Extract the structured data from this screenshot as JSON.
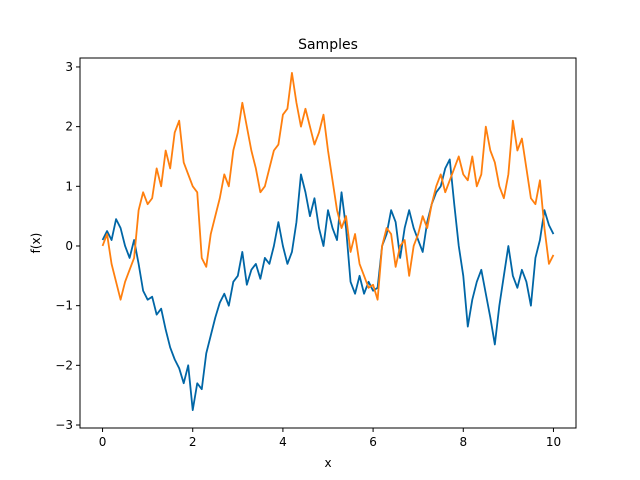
{
  "chart_data": {
    "type": "line",
    "title": "Samples",
    "xlabel": "x",
    "ylabel": "f(x)",
    "xlim": [
      -0.5,
      10.5
    ],
    "ylim": [
      -3.05,
      3.15
    ],
    "xticks": [
      0,
      2,
      4,
      6,
      8,
      10
    ],
    "yticks": [
      -3,
      -2,
      -1,
      0,
      1,
      2,
      3
    ],
    "xtick_labels": [
      "0",
      "2",
      "4",
      "6",
      "8",
      "10"
    ],
    "ytick_labels": [
      "−3",
      "−2",
      "−1",
      "0",
      "1",
      "2",
      "3"
    ],
    "grid": false,
    "legend": "none",
    "series": [
      {
        "color": "#0066a6",
        "x": [
          0,
          0.1,
          0.2,
          0.3,
          0.4,
          0.5,
          0.6,
          0.7,
          0.8,
          0.9,
          1.0,
          1.1,
          1.2,
          1.3,
          1.4,
          1.5,
          1.6,
          1.7,
          1.8,
          1.9,
          2.0,
          2.1,
          2.2,
          2.3,
          2.4,
          2.5,
          2.6,
          2.7,
          2.8,
          2.9,
          3.0,
          3.1,
          3.2,
          3.3,
          3.4,
          3.5,
          3.6,
          3.7,
          3.8,
          3.9,
          4.0,
          4.1,
          4.2,
          4.3,
          4.4,
          4.5,
          4.6,
          4.7,
          4.8,
          4.9,
          5.0,
          5.1,
          5.2,
          5.3,
          5.4,
          5.5,
          5.6,
          5.7,
          5.8,
          5.9,
          6.0,
          6.1,
          6.2,
          6.3,
          6.4,
          6.5,
          6.6,
          6.7,
          6.8,
          6.9,
          7.0,
          7.1,
          7.2,
          7.3,
          7.4,
          7.5,
          7.6,
          7.7,
          7.8,
          7.9,
          8.0,
          8.1,
          8.2,
          8.3,
          8.4,
          8.5,
          8.6,
          8.7,
          8.8,
          8.9,
          9.0,
          9.1,
          9.2,
          9.3,
          9.4,
          9.5,
          9.6,
          9.7,
          9.8,
          9.9,
          10.0
        ],
        "y": [
          0.1,
          0.25,
          0.1,
          0.45,
          0.3,
          0.0,
          -0.2,
          0.1,
          -0.3,
          -0.75,
          -0.9,
          -0.85,
          -1.15,
          -1.05,
          -1.4,
          -1.7,
          -1.9,
          -2.05,
          -2.3,
          -2.0,
          -2.75,
          -2.3,
          -2.4,
          -1.8,
          -1.5,
          -1.2,
          -0.95,
          -0.8,
          -1.0,
          -0.6,
          -0.5,
          -0.1,
          -0.65,
          -0.4,
          -0.3,
          -0.55,
          -0.2,
          -0.3,
          0.0,
          0.4,
          0.0,
          -0.3,
          -0.1,
          0.4,
          1.2,
          0.9,
          0.5,
          0.8,
          0.3,
          0.0,
          0.6,
          0.3,
          0.1,
          0.9,
          0.3,
          -0.6,
          -0.8,
          -0.5,
          -0.8,
          -0.6,
          -0.75,
          -0.7,
          0.0,
          0.2,
          0.6,
          0.4,
          -0.2,
          0.3,
          0.6,
          0.3,
          0.1,
          -0.1,
          0.4,
          0.7,
          0.9,
          1.0,
          1.3,
          1.45,
          0.7,
          0.0,
          -0.5,
          -1.35,
          -0.9,
          -0.6,
          -0.4,
          -0.8,
          -1.2,
          -1.65,
          -1.0,
          -0.5,
          0.0,
          -0.5,
          -0.7,
          -0.4,
          -0.6,
          -1.0,
          -0.2,
          0.1,
          0.6,
          0.35,
          0.2
        ]
      },
      {
        "color": "#ff7f0e",
        "x": [
          0,
          0.1,
          0.2,
          0.3,
          0.4,
          0.5,
          0.6,
          0.7,
          0.8,
          0.9,
          1.0,
          1.1,
          1.2,
          1.3,
          1.4,
          1.5,
          1.6,
          1.7,
          1.8,
          1.9,
          2.0,
          2.1,
          2.2,
          2.3,
          2.4,
          2.5,
          2.6,
          2.7,
          2.8,
          2.9,
          3.0,
          3.1,
          3.2,
          3.3,
          3.4,
          3.5,
          3.6,
          3.7,
          3.8,
          3.9,
          4.0,
          4.1,
          4.2,
          4.3,
          4.4,
          4.5,
          4.6,
          4.7,
          4.8,
          4.9,
          5.0,
          5.1,
          5.2,
          5.3,
          5.4,
          5.5,
          5.6,
          5.7,
          5.8,
          5.9,
          6.0,
          6.1,
          6.2,
          6.3,
          6.4,
          6.5,
          6.6,
          6.7,
          6.8,
          6.9,
          7.0,
          7.1,
          7.2,
          7.3,
          7.4,
          7.5,
          7.6,
          7.7,
          7.8,
          7.9,
          8.0,
          8.1,
          8.2,
          8.3,
          8.4,
          8.5,
          8.6,
          8.7,
          8.8,
          8.9,
          9.0,
          9.1,
          9.2,
          9.3,
          9.4,
          9.5,
          9.6,
          9.7,
          9.8,
          9.9,
          10.0
        ],
        "y": [
          0.0,
          0.2,
          -0.3,
          -0.6,
          -0.9,
          -0.6,
          -0.4,
          -0.2,
          0.6,
          0.9,
          0.7,
          0.8,
          1.3,
          1.0,
          1.6,
          1.3,
          1.9,
          2.1,
          1.4,
          1.2,
          1.0,
          0.9,
          -0.2,
          -0.35,
          0.2,
          0.5,
          0.8,
          1.2,
          1.0,
          1.6,
          1.9,
          2.4,
          2.0,
          1.6,
          1.3,
          0.9,
          1.0,
          1.3,
          1.6,
          1.7,
          2.2,
          2.3,
          2.9,
          2.4,
          2.0,
          2.3,
          2.0,
          1.7,
          1.9,
          2.2,
          1.6,
          1.1,
          0.6,
          0.3,
          0.5,
          -0.1,
          0.2,
          -0.3,
          -0.5,
          -0.7,
          -0.65,
          -0.9,
          0.0,
          0.3,
          0.2,
          -0.35,
          0.0,
          0.1,
          -0.5,
          0.0,
          0.2,
          0.5,
          0.3,
          0.7,
          1.0,
          1.2,
          0.9,
          1.1,
          1.3,
          1.5,
          1.2,
          1.1,
          1.5,
          1.0,
          1.2,
          2.0,
          1.6,
          1.4,
          1.0,
          0.8,
          1.2,
          2.1,
          1.6,
          1.8,
          1.3,
          0.8,
          0.7,
          1.1,
          0.3,
          -0.3,
          -0.15
        ]
      }
    ]
  }
}
